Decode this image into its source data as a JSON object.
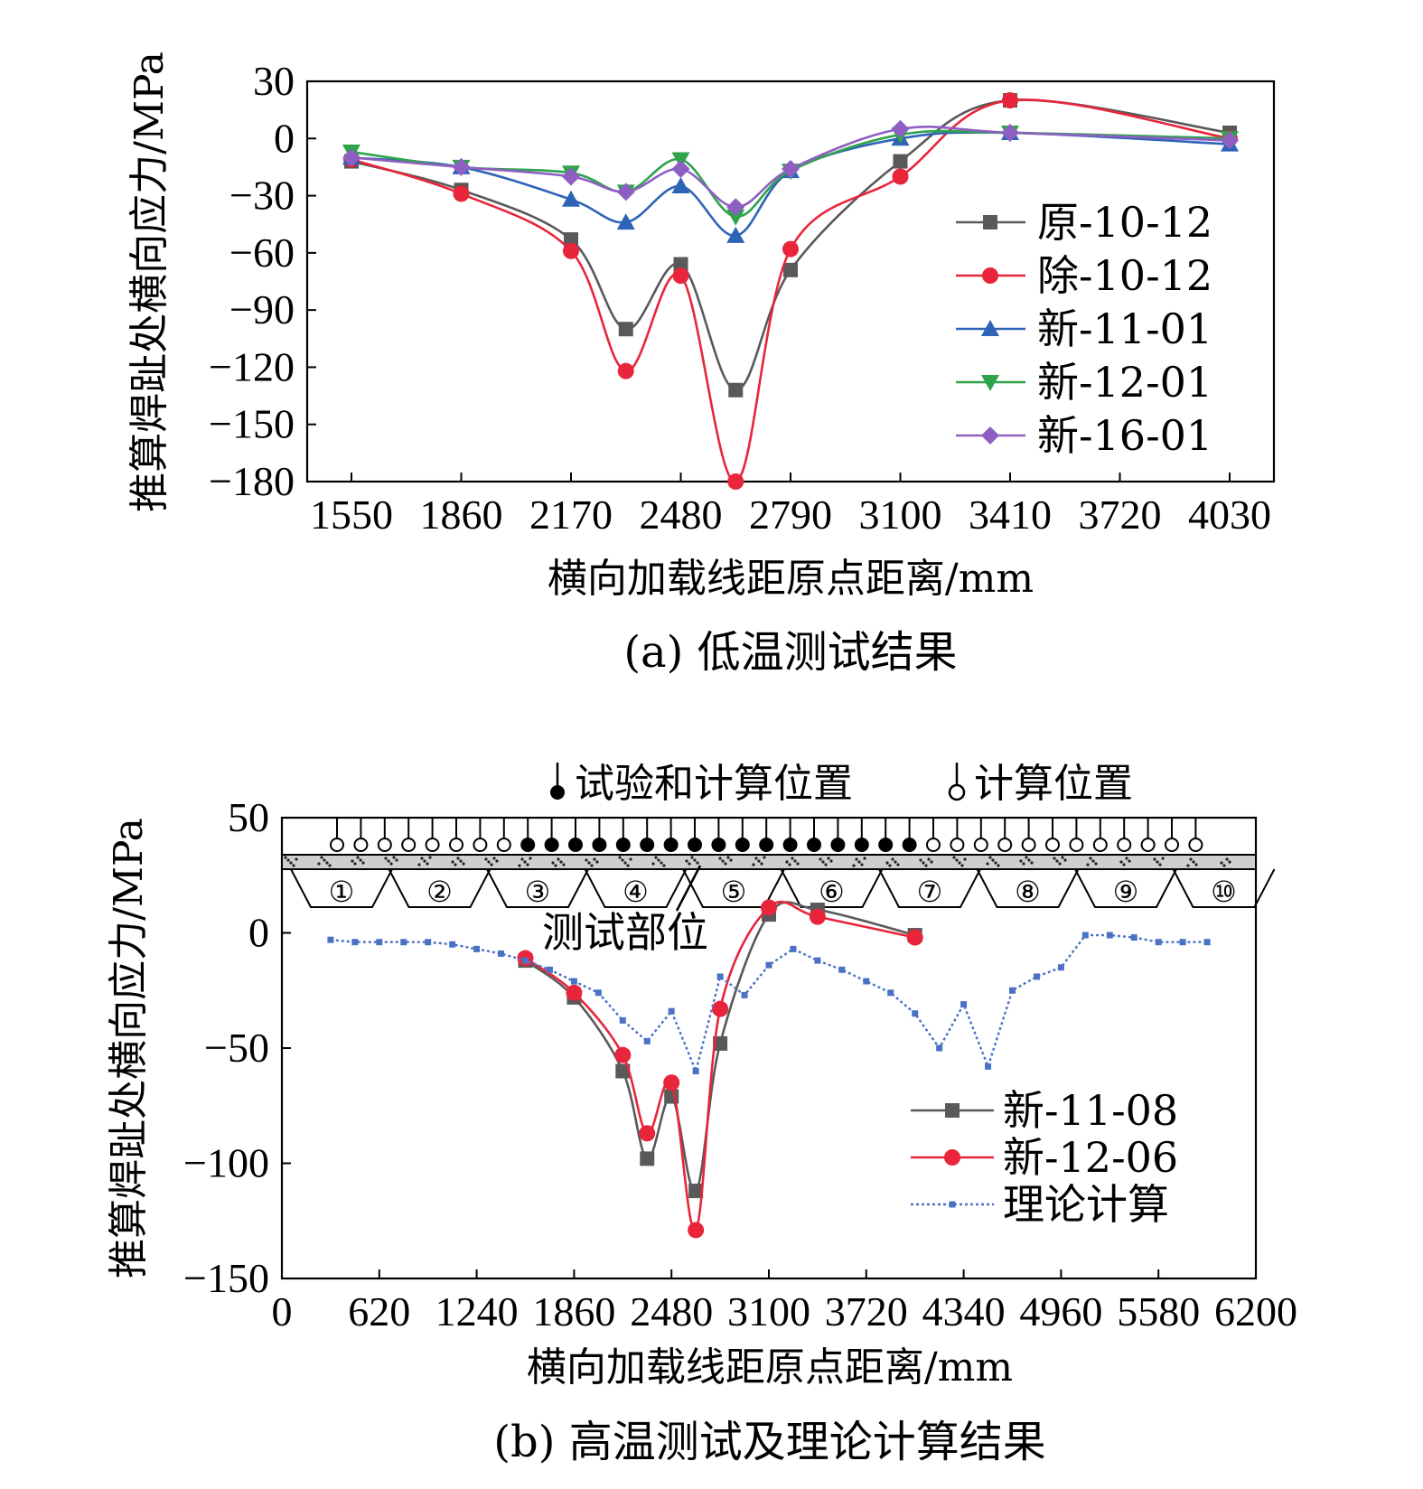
{
  "chart_data": [
    {
      "type": "line",
      "caption": "(a) 低温测试结果",
      "xlabel": "横向加载线距原点距离/mm",
      "ylabel": "推算焊趾处横向应力/MPa",
      "xlim": [
        1425,
        4155
      ],
      "ylim": [
        -180,
        30
      ],
      "xticks": [
        "1550",
        "1860",
        "2170",
        "2480",
        "2790",
        "3100",
        "3410",
        "3720",
        "4030"
      ],
      "yticks": [
        "30",
        "0",
        "−30",
        "−60",
        "−90",
        "−120",
        "−150",
        "−180"
      ],
      "x": [
        1550,
        1860,
        2170,
        2325,
        2480,
        2635,
        2790,
        3100,
        3410,
        4030
      ],
      "series": [
        {
          "name": "原-10-12",
          "color": "#595959",
          "marker": "square",
          "values": [
            -12,
            -27,
            -53,
            -100,
            -66,
            -132,
            -69,
            -12,
            20,
            3
          ]
        },
        {
          "name": "除-10-12",
          "color": "#e8253a",
          "marker": "circle",
          "values": [
            -11,
            -29,
            -59,
            -122,
            -72,
            -180,
            -58,
            -20,
            20,
            0
          ]
        },
        {
          "name": "新-11-01",
          "color": "#2e63b8",
          "marker": "triangle-up",
          "values": [
            -10,
            -15,
            -32,
            -44,
            -25,
            -51,
            -17,
            0,
            3,
            -3
          ]
        },
        {
          "name": "新-12-01",
          "color": "#2fa34a",
          "marker": "triangle-down",
          "values": [
            -7,
            -15,
            -18,
            -28,
            -11,
            -41,
            -17,
            2,
            3,
            0
          ]
        },
        {
          "name": "新-16-01",
          "color": "#8e5fc2",
          "marker": "diamond",
          "values": [
            -10,
            -15,
            -20,
            -28,
            -16,
            -36,
            -16,
            5,
            3,
            -1
          ]
        }
      ],
      "legend": "right"
    },
    {
      "type": "line",
      "caption": "(b) 高温测试及理论计算结果",
      "xlabel": "横向加载线距原点距离/mm",
      "ylabel": "推算焊趾处横向应力/MPa",
      "xlim": [
        0,
        6200
      ],
      "ylim": [
        -150,
        50
      ],
      "xticks": [
        "0",
        "620",
        "1240",
        "1860",
        "2480",
        "3100",
        "3720",
        "4340",
        "4960",
        "5580",
        "6200"
      ],
      "yticks": [
        "50",
        "0",
        "−50",
        "−100",
        "−150"
      ],
      "series": [
        {
          "name": "新-11-08",
          "color": "#595959",
          "marker": "square",
          "x": [
            1550,
            1860,
            2170,
            2325,
            2480,
            2635,
            2790,
            3100,
            3410,
            4030
          ],
          "values": [
            -12,
            -28,
            -60,
            -98,
            -71,
            -112,
            -48,
            8,
            10,
            -1
          ]
        },
        {
          "name": "新-12-06",
          "color": "#e8253a",
          "marker": "circle",
          "x": [
            1550,
            1860,
            2170,
            2325,
            2480,
            2635,
            2790,
            3100,
            3410,
            4030
          ],
          "values": [
            -11,
            -26,
            -53,
            -87,
            -65,
            -129,
            -33,
            11,
            7,
            -2
          ]
        },
        {
          "name": "理论计算",
          "color": "#4a72c4",
          "marker": "small-square",
          "dash": "dotted",
          "x": [
            310,
            465,
            620,
            775,
            930,
            1085,
            1240,
            1395,
            1550,
            1705,
            1860,
            2015,
            2170,
            2325,
            2480,
            2635,
            2790,
            2945,
            3100,
            3255,
            3410,
            3565,
            3720,
            3875,
            4030,
            4185,
            4340,
            4495,
            4650,
            4805,
            4960,
            5115,
            5270,
            5425,
            5580,
            5735,
            5890
          ],
          "values": [
            -3,
            -4,
            -4,
            -4,
            -4,
            -5,
            -7,
            -9,
            -12,
            -16,
            -21,
            -26,
            -38,
            -47,
            -34,
            -60,
            -19,
            -27,
            -14,
            -7,
            -12,
            -16,
            -21,
            -26,
            -35,
            -50,
            -31,
            -58,
            -25,
            -19,
            -15,
            -1,
            -1,
            -2,
            -4,
            -4,
            -4
          ]
        }
      ],
      "legend": "bottom-right"
    }
  ],
  "annotations": {
    "legend_solid": "试验和计算位置",
    "legend_hollow": "计算位置",
    "test_location": "测试部位",
    "ribs": [
      "①",
      "②",
      "③",
      "④",
      "⑤",
      "⑥",
      "⑦",
      "⑧",
      "⑨",
      "⑩"
    ]
  }
}
